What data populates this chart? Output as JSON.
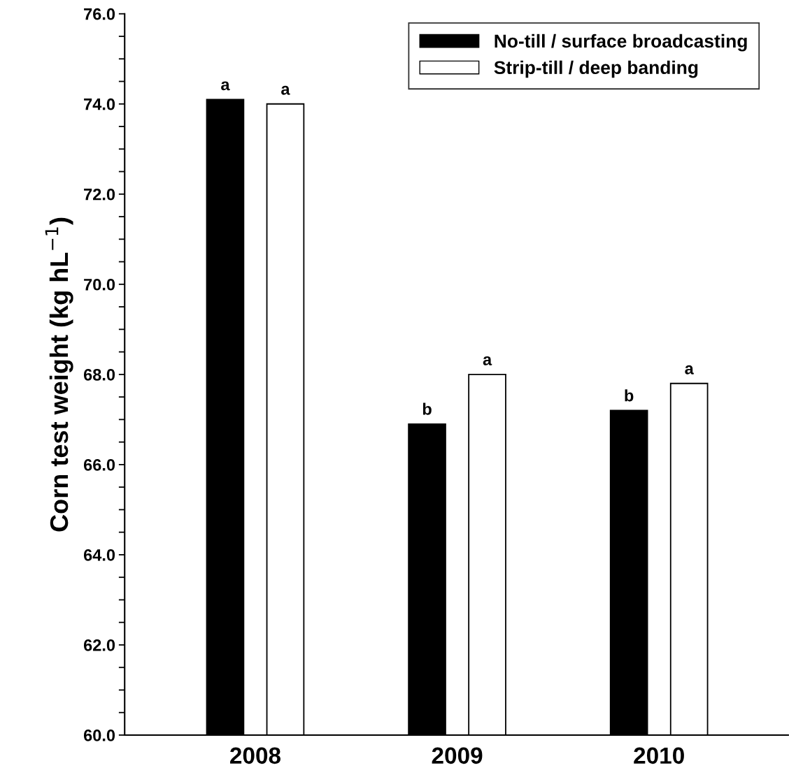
{
  "chart_data": {
    "type": "bar",
    "ylabel": "Corn test weight (kg hL$^{−1}$)",
    "categories": [
      "2008",
      "2009",
      "2010"
    ],
    "series": [
      {
        "name": "No-till / surface broadcasting",
        "color": "#000000",
        "values": [
          74.1,
          66.9,
          67.2
        ],
        "value_labels": [
          "a",
          "b",
          "b"
        ]
      },
      {
        "name": "Strip-till / deep banding",
        "color": "#ffffff",
        "values": [
          74.0,
          68.0,
          67.8
        ],
        "value_labels": [
          "a",
          "a",
          "a"
        ]
      }
    ],
    "ylim": [
      60,
      76
    ],
    "yticks": [
      {
        "value": 60,
        "label": "60.0"
      },
      {
        "value": 60.5,
        "label": null
      },
      {
        "value": 61,
        "label": null
      },
      {
        "value": 61.5,
        "label": null
      },
      {
        "value": 62,
        "label": "62.0"
      },
      {
        "value": 62.5,
        "label": null
      },
      {
        "value": 63,
        "label": null
      },
      {
        "value": 63.5,
        "label": null
      },
      {
        "value": 64,
        "label": "64.0"
      },
      {
        "value": 64.5,
        "label": null
      },
      {
        "value": 65,
        "label": null
      },
      {
        "value": 65.5,
        "label": null
      },
      {
        "value": 66,
        "label": "66.0"
      },
      {
        "value": 66.5,
        "label": null
      },
      {
        "value": 67,
        "label": null
      },
      {
        "value": 67.5,
        "label": null
      },
      {
        "value": 68,
        "label": "68.0"
      },
      {
        "value": 68.5,
        "label": null
      },
      {
        "value": 69,
        "label": null
      },
      {
        "value": 69.5,
        "label": null
      },
      {
        "value": 70,
        "label": "70.0"
      },
      {
        "value": 70.5,
        "label": null
      },
      {
        "value": 71,
        "label": null
      },
      {
        "value": 71.5,
        "label": null
      },
      {
        "value": 72,
        "label": "72.0"
      },
      {
        "value": 72.5,
        "label": null
      },
      {
        "value": 73,
        "label": null
      },
      {
        "value": 73.5,
        "label": null
      },
      {
        "value": 74,
        "label": "74.0"
      },
      {
        "value": 74.5,
        "label": null
      },
      {
        "value": 75,
        "label": null
      },
      {
        "value": 75.5,
        "label": null
      },
      {
        "value": 76,
        "label": "76.0"
      }
    ],
    "grid": false,
    "legend": "top right"
  }
}
